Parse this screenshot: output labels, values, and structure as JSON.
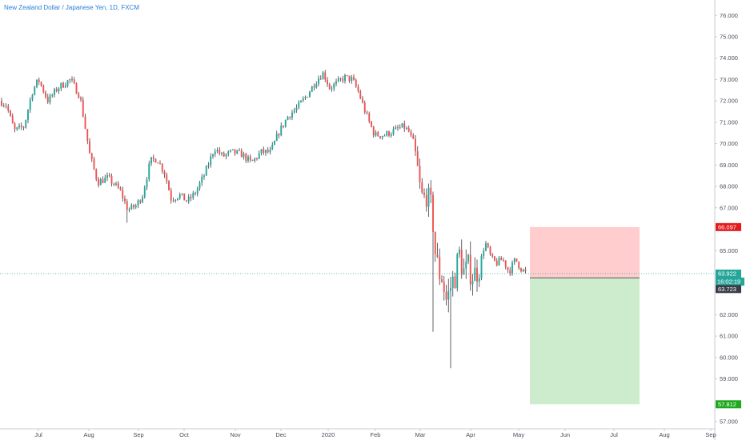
{
  "header": {
    "title": "New Zealand Dollar / Japanese Yen, 1D, FXCM"
  },
  "colors": {
    "up": "#26a69a",
    "down": "#ef5350",
    "wick": "#3a3d46",
    "stop_zone": "#ffcdcd",
    "target_zone": "#cdeccd",
    "stop_tag": "#e31b1b",
    "target_tag": "#1fa81f",
    "last_price_tag": "#26a69a",
    "entry_tag": "#3a3d46",
    "axis": "#c8cbd2",
    "price_line": "#26a69a"
  },
  "chart_data": {
    "type": "candlestick",
    "title": "New Zealand Dollar / Japanese Yen, 1D, FXCM",
    "symbol": "NZDJPY",
    "interval": "1D",
    "source": "FXCM",
    "ylim": [
      56.8,
      76.4
    ],
    "yticks": [
      "76.000",
      "75.000",
      "74.000",
      "73.000",
      "72.000",
      "71.000",
      "70.000",
      "69.000",
      "68.000",
      "67.000",
      "65.000",
      "62.000",
      "61.000",
      "60.000",
      "59.000",
      "57.000"
    ],
    "xticks": [
      "Jul",
      "Aug",
      "Sep",
      "Oct",
      "Nov",
      "Dec",
      "2020",
      "Feb",
      "Mar",
      "Apr",
      "May",
      "Jun",
      "Jul",
      "Aug",
      "Sep"
    ],
    "series_close_approx": [
      {
        "date": "Jun",
        "close": 72.0
      },
      {
        "date": "Jul",
        "close": 72.1
      },
      {
        "date": "Aug",
        "close": 68.8
      },
      {
        "date": "Sep",
        "close": 67.3
      },
      {
        "date": "Oct",
        "close": 67.4
      },
      {
        "date": "Nov",
        "close": 69.6
      },
      {
        "date": "Dec",
        "close": 72.3
      },
      {
        "date": "2020",
        "close": 73.0
      },
      {
        "date": "Feb",
        "close": 70.8
      },
      {
        "date": "Mar",
        "close": 66.9
      },
      {
        "date": "Apr",
        "close": 63.8
      },
      {
        "date": "May",
        "close": 64.6
      }
    ],
    "price_labels": {
      "stop": "66.097",
      "last": "63.922",
      "countdown": "16:02:19",
      "entry": "63.723",
      "target": "57.812"
    },
    "position": {
      "stop": 66.097,
      "entry": 63.723,
      "target": 57.812,
      "last": 63.922
    }
  }
}
